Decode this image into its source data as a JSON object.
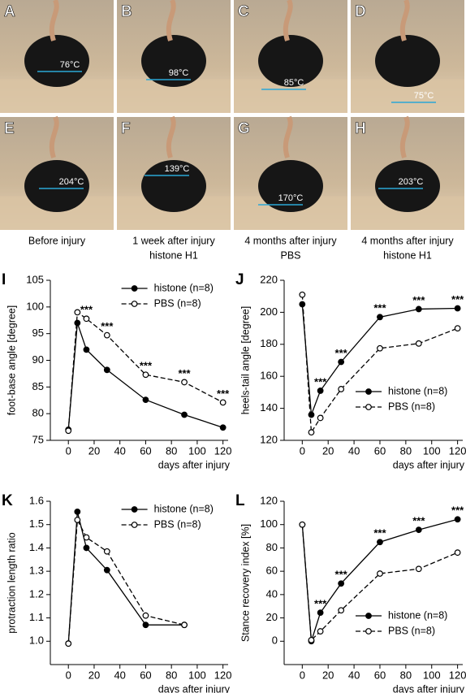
{
  "photos": [
    {
      "panel": "A",
      "angle_label": "76°C"
    },
    {
      "panel": "B",
      "angle_label": "98°C"
    },
    {
      "panel": "C",
      "angle_label": "85°C"
    },
    {
      "panel": "D",
      "angle_label": "75°C"
    },
    {
      "panel": "E",
      "angle_label": "204°C"
    },
    {
      "panel": "F",
      "angle_label": "139°C"
    },
    {
      "panel": "G",
      "angle_label": "170°C"
    },
    {
      "panel": "H",
      "angle_label": "203°C"
    }
  ],
  "captions": [
    [
      "Before injury"
    ],
    [
      "1 week after injury",
      "histone H1"
    ],
    [
      "4 months after injury",
      "PBS"
    ],
    [
      "4 months after injury",
      "histone H1"
    ]
  ],
  "chart_data": [
    {
      "type": "line",
      "panel": "I",
      "x_label": "days after injury",
      "y_label": "foot-base angle [degree]",
      "x": [
        0,
        7,
        14,
        30,
        60,
        90,
        120
      ],
      "xlim": [
        -14,
        124
      ],
      "xticks": [
        0,
        20,
        40,
        60,
        80,
        100,
        120
      ],
      "ylim": [
        75,
        105
      ],
      "yticks": [
        75,
        80,
        85,
        90,
        95,
        100,
        105
      ],
      "legend": "upper right",
      "series": [
        {
          "name": "histone (n=8)",
          "color": "#000000",
          "linestyle": "solid",
          "marker_fill": "filled",
          "values": [
            77,
            97,
            92,
            88.2,
            82.6,
            79.8,
            77.4
          ]
        },
        {
          "name": "PBS (n=8)",
          "color": "#000000",
          "linestyle": "dashed",
          "marker_fill": "open",
          "values": [
            76.8,
            99,
            97.8,
            94.7,
            87.3,
            85.9,
            82.1
          ]
        }
      ],
      "significance": {
        "label": "***",
        "x": [
          14,
          30,
          60,
          90,
          120
        ]
      }
    },
    {
      "type": "line",
      "panel": "J",
      "x_label": "days after injury",
      "y_label": "heels-tail angle [degree]",
      "x": [
        0,
        7,
        14,
        30,
        60,
        90,
        120
      ],
      "xlim": [
        -14,
        124
      ],
      "xticks": [
        0,
        20,
        40,
        60,
        80,
        100,
        120
      ],
      "ylim": [
        120,
        220
      ],
      "yticks": [
        120,
        140,
        160,
        180,
        200,
        220
      ],
      "legend": "lower right",
      "series": [
        {
          "name": "histone (n=8)",
          "color": "#000000",
          "linestyle": "solid",
          "marker_fill": "filled",
          "values": [
            205,
            136,
            151,
            169,
            197,
            202,
            202.5
          ]
        },
        {
          "name": "PBS (n=8)",
          "color": "#000000",
          "linestyle": "dashed",
          "marker_fill": "open",
          "values": [
            211,
            125,
            134,
            152,
            177.5,
            180.5,
            190
          ]
        }
      ],
      "significance": {
        "label": "***",
        "x": [
          14,
          30,
          60,
          90,
          120
        ]
      }
    },
    {
      "type": "line",
      "panel": "K",
      "x_label": "days after injury",
      "y_label": "protraction length ratio",
      "x": [
        0,
        7,
        14,
        30,
        60,
        90
      ],
      "xlim": [
        -14,
        124
      ],
      "xticks": [
        0,
        20,
        40,
        60,
        80,
        100,
        120
      ],
      "ylim": [
        0.9,
        1.6
      ],
      "yticks": [
        {
          "value": 1.0,
          "label": "1.0"
        },
        1.1,
        1.2,
        1.3,
        1.4,
        1.5,
        1.6
      ],
      "legend": "upper right",
      "series": [
        {
          "name": "histone (n=8)",
          "color": "#000000",
          "linestyle": "solid",
          "marker_fill": "filled",
          "values": [
            0.99,
            1.555,
            1.4,
            1.305,
            1.07,
            1.07
          ]
        },
        {
          "name": "PBS (n=8)",
          "color": "#000000",
          "linestyle": "dashed",
          "marker_fill": "open",
          "values": [
            0.99,
            1.52,
            1.445,
            1.385,
            1.11,
            1.07
          ]
        }
      ]
    },
    {
      "type": "line",
      "panel": "L",
      "x_label": "days after injury",
      "y_label": "Stance recovery index [%]",
      "x": [
        0,
        7,
        14,
        30,
        60,
        90,
        120
      ],
      "xlim": [
        -14,
        124
      ],
      "xticks": [
        0,
        20,
        40,
        60,
        80,
        100,
        120
      ],
      "ylim": [
        -20,
        120
      ],
      "yticks": [
        0,
        20,
        40,
        60,
        80,
        100,
        120
      ],
      "legend": "lower right",
      "series": [
        {
          "name": "histone (n=8)",
          "color": "#000000",
          "linestyle": "solid",
          "marker_fill": "filled",
          "values": [
            100,
            0,
            24.5,
            49.5,
            85,
            95.5,
            104.5
          ]
        },
        {
          "name": "PBS (n=8)",
          "color": "#000000",
          "linestyle": "dashed",
          "marker_fill": "open",
          "values": [
            100,
            1,
            8.5,
            26.5,
            58,
            62,
            76
          ]
        }
      ],
      "significance": {
        "label": "***",
        "x": [
          14,
          30,
          60,
          90,
          120
        ]
      }
    }
  ]
}
